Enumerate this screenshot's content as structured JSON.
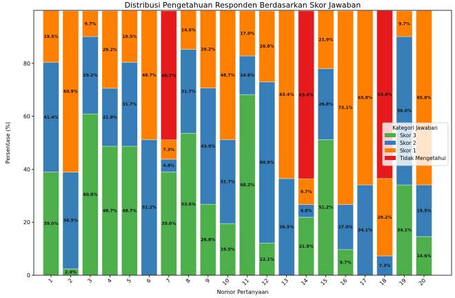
{
  "chart_data": {
    "type": "bar",
    "stacked": true,
    "title": "Distribusi Pengetahuan Responden Berdasarkan Skor Jawaban",
    "xlabel": "Nomor Pertanyaan",
    "ylabel": "Persentase (%)",
    "ylim": [
      0,
      100
    ],
    "yticks": [
      0,
      20,
      40,
      60,
      80
    ],
    "grid": false,
    "categories": [
      "1",
      "2",
      "3",
      "4",
      "5",
      "6",
      "7",
      "8",
      "9",
      "10",
      "11",
      "12",
      "13",
      "14",
      "15",
      "16",
      "17",
      "18",
      "19",
      "20"
    ],
    "series": [
      {
        "name": "Skor 3",
        "color": "#4daf4a",
        "values": [
          39.0,
          2.4,
          60.9,
          48.7,
          48.7,
          0,
          39.0,
          53.6,
          26.8,
          19.5,
          68.2,
          12.1,
          0,
          21.9,
          51.2,
          9.7,
          0,
          0,
          34.1,
          14.6
        ]
      },
      {
        "name": "Skor 2",
        "color": "#377eb8",
        "values": [
          41.4,
          36.5,
          29.2,
          21.9,
          31.7,
          51.2,
          4.8,
          31.7,
          43.9,
          31.7,
          14.6,
          60.9,
          36.5,
          4.8,
          26.8,
          17.0,
          34.1,
          7.3,
          56.0,
          19.5
        ]
      },
      {
        "name": "Skor 1",
        "color": "#ff7f00",
        "values": [
          19.5,
          60.9,
          9.7,
          29.2,
          19.5,
          48.7,
          7.3,
          14.6,
          29.2,
          48.7,
          17.0,
          26.8,
          63.4,
          9.7,
          21.9,
          73.1,
          65.8,
          29.2,
          9.7,
          65.8
        ]
      },
      {
        "name": "Tidak Mengetahui",
        "color": "#e41a1c",
        "values": [
          0,
          0,
          0,
          0,
          0,
          0,
          48.7,
          0,
          0,
          0,
          0,
          0,
          0,
          63.4,
          0,
          0,
          0,
          63.4,
          0,
          0
        ]
      }
    ],
    "data_labels": "percent with one decimal, shown for nonzero segments",
    "legend": {
      "title": "Kategori Jawaban",
      "placement": "center-right"
    }
  }
}
